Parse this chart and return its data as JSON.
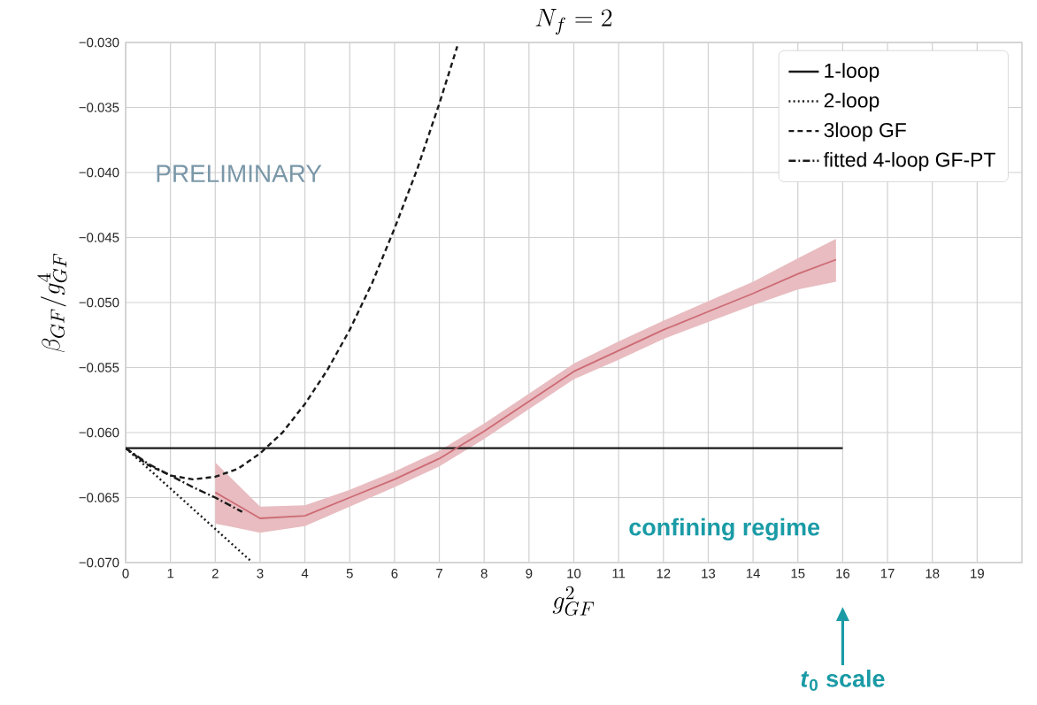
{
  "chart_data": {
    "type": "line",
    "title": "N_f = 2",
    "xlabel": "g^2_{GF}",
    "ylabel": "\\beta_{GF}/g^4_{GF}",
    "xlim": [
      0,
      20
    ],
    "ylim": [
      -0.07,
      -0.03
    ],
    "xticks": [
      0,
      1,
      2,
      3,
      4,
      5,
      6,
      7,
      8,
      9,
      10,
      11,
      12,
      13,
      14,
      15,
      16,
      17,
      18,
      19
    ],
    "yticks": [
      {
        "value": -0.07,
        "label": "−0.070"
      },
      {
        "value": -0.065,
        "label": "−0.065"
      },
      {
        "value": -0.06,
        "label": "−0.060"
      },
      {
        "value": -0.055,
        "label": "−0.055"
      },
      {
        "value": -0.05,
        "label": "−0.050"
      },
      {
        "value": -0.045,
        "label": "−0.045"
      },
      {
        "value": -0.04,
        "label": "−0.040"
      },
      {
        "value": -0.035,
        "label": "−0.035"
      },
      {
        "value": -0.03,
        "label": "−0.030"
      }
    ],
    "grid": true,
    "legend": "top right",
    "series": [
      {
        "name": "1-loop",
        "color": "#1a1a1a",
        "line_style": "solid",
        "x": [
          0,
          16
        ],
        "values": [
          -0.0612,
          -0.0612
        ]
      },
      {
        "name": "2-loop",
        "color": "#1a1a1a",
        "line_style": "dotted",
        "x": [
          0,
          2.8
        ],
        "values": [
          -0.0612,
          -0.0699
        ]
      },
      {
        "name": "3loop GF",
        "color": "#1a1a1a",
        "line_style": "dashed",
        "x": [
          0,
          0.5,
          1,
          1.5,
          2,
          2.5,
          3,
          3.5,
          4,
          4.5,
          5,
          5.5,
          6,
          6.5,
          7,
          7.4
        ],
        "values": [
          -0.0612,
          -0.0625,
          -0.0633,
          -0.0636,
          -0.0634,
          -0.0628,
          -0.0616,
          -0.06,
          -0.0578,
          -0.0552,
          -0.0521,
          -0.0485,
          -0.0443,
          -0.0398,
          -0.0347,
          -0.0303
        ]
      },
      {
        "name": "fitted 4-loop GF-PT",
        "color": "#1a1a1a",
        "line_style": "dashdotted",
        "x": [
          0,
          0.5,
          1,
          1.5,
          2,
          2.6
        ],
        "values": [
          -0.0612,
          -0.0624,
          -0.0633,
          -0.0642,
          -0.065,
          -0.0661
        ]
      },
      {
        "color": "#cd6b74",
        "line_style": "solid",
        "x": [
          2,
          3,
          4,
          5,
          6,
          7,
          8,
          9,
          10,
          11,
          12,
          13,
          14,
          15,
          15.85
        ],
        "values": [
          -0.0646,
          -0.0666,
          -0.0664,
          -0.065,
          -0.0636,
          -0.062,
          -0.0599,
          -0.0576,
          -0.0553,
          -0.0537,
          -0.0521,
          -0.0507,
          -0.0493,
          -0.0478,
          -0.0467
        ],
        "lower": [
          -0.067,
          -0.0677,
          -0.0672,
          -0.0657,
          -0.0642,
          -0.0626,
          -0.0605,
          -0.0582,
          -0.0559,
          -0.0544,
          -0.0528,
          -0.0515,
          -0.0502,
          -0.049,
          -0.0484
        ],
        "upper": [
          -0.0623,
          -0.0657,
          -0.0656,
          -0.0644,
          -0.063,
          -0.0614,
          -0.0593,
          -0.057,
          -0.0547,
          -0.053,
          -0.0514,
          -0.0499,
          -0.0484,
          -0.0466,
          -0.0451
        ]
      }
    ],
    "annotations": [
      "PRELIMINARY",
      "confining regime",
      "*t*$_{0}$ scale"
    ]
  }
}
